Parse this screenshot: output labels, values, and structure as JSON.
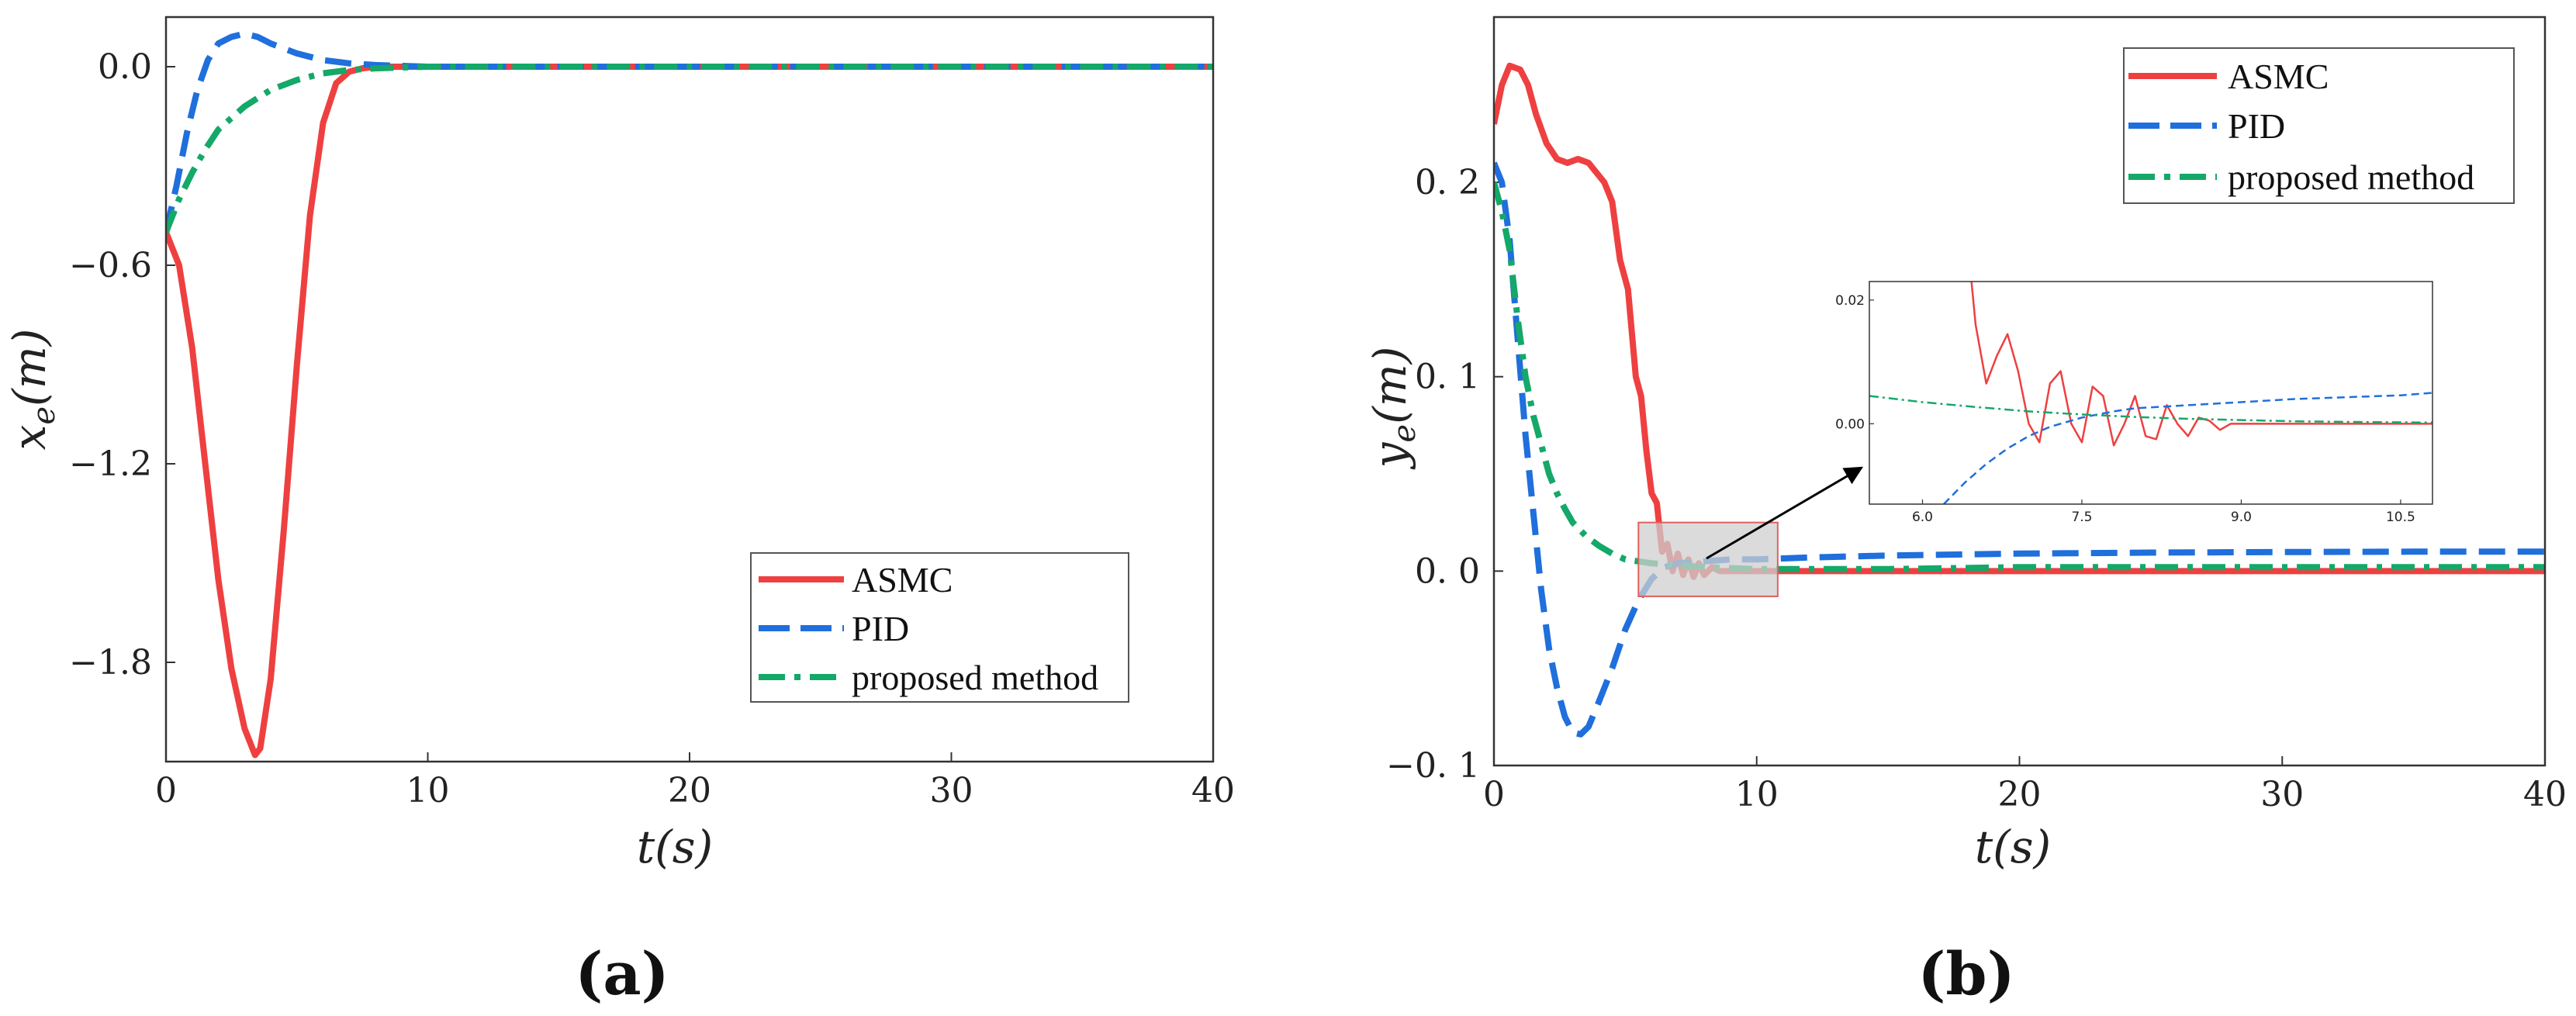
{
  "colors": {
    "asmc": "#ee4040",
    "pid": "#1f6fdc",
    "proposed": "#14a869",
    "frame": "#333333",
    "zoom_box": "#d0d0d0"
  },
  "chart_data": [
    {
      "id": "a",
      "type": "line",
      "caption": "(a)",
      "xlabel": "t(s)",
      "ylabel": "x_e(m)",
      "ylabel_main": "x",
      "ylabel_sub": "e",
      "ylabel_unit": "(m)",
      "xlim": [
        0,
        40
      ],
      "ylim": [
        -2.1,
        0.15
      ],
      "xticks": [
        0,
        10,
        20,
        30,
        40
      ],
      "yticks": [
        0.0,
        -0.6,
        -1.2,
        -1.8
      ],
      "ytick_labels": [
        "0.0",
        "−0.6",
        "−1.2",
        "−1.8"
      ],
      "legend_position": "bottom-right",
      "legend": [
        "ASMC",
        "PID",
        "proposed method"
      ],
      "series": [
        {
          "name": "ASMC",
          "style": "solid",
          "x": [
            0,
            0.5,
            1,
            1.5,
            2,
            2.5,
            3,
            3.4,
            3.6,
            4,
            4.5,
            5,
            5.5,
            6,
            6.5,
            7,
            7.5,
            8,
            10,
            15,
            20,
            25,
            30,
            35,
            40
          ],
          "y": [
            -0.5,
            -0.6,
            -0.85,
            -1.2,
            -1.55,
            -1.82,
            -2.0,
            -2.08,
            -2.06,
            -1.85,
            -1.4,
            -0.9,
            -0.45,
            -0.17,
            -0.05,
            -0.015,
            -0.005,
            0.0,
            0.0,
            0.0,
            0.0,
            0.0,
            0.0,
            0.0,
            0.0
          ]
        },
        {
          "name": "PID",
          "style": "dashed",
          "x": [
            0,
            0.4,
            0.8,
            1.2,
            1.6,
            2,
            2.5,
            3,
            3.5,
            4,
            5,
            6,
            7,
            8,
            10,
            15,
            20,
            25,
            30,
            35,
            40
          ],
          "y": [
            -0.5,
            -0.36,
            -0.2,
            -0.07,
            0.02,
            0.07,
            0.09,
            0.1,
            0.09,
            0.07,
            0.04,
            0.02,
            0.01,
            0.005,
            0.0,
            0.0,
            0.0,
            0.0,
            0.0,
            0.0,
            0.0
          ]
        },
        {
          "name": "proposed method",
          "style": "dashdot",
          "x": [
            0,
            0.5,
            1,
            1.5,
            2,
            3,
            4,
            5,
            6,
            7,
            8,
            10,
            15,
            20,
            25,
            30,
            35,
            40
          ],
          "y": [
            -0.5,
            -0.4,
            -0.32,
            -0.25,
            -0.19,
            -0.12,
            -0.07,
            -0.04,
            -0.02,
            -0.01,
            -0.005,
            0.0,
            0.0,
            0.0,
            0.0,
            0.0,
            0.0,
            0.0
          ]
        }
      ]
    },
    {
      "id": "b",
      "type": "line",
      "caption": "(b)",
      "xlabel": "t(s)",
      "ylabel": "y_e(m)",
      "ylabel_main": "y",
      "ylabel_sub": "e",
      "ylabel_unit": "(m)",
      "xlim": [
        0,
        40
      ],
      "ylim": [
        -0.1,
        0.285
      ],
      "xticks": [
        0,
        10,
        20,
        30,
        40
      ],
      "yticks": [
        0.2,
        0.1,
        0.0,
        -0.1
      ],
      "ytick_labels": [
        "0. 2",
        "0. 1",
        "0. 0",
        "−0. 1"
      ],
      "legend_position": "top-right",
      "legend": [
        "ASMC",
        "PID",
        "proposed method"
      ],
      "zoom_region": {
        "xlim": [
          5.5,
          10.8
        ],
        "ylim": [
          -0.013,
          0.025
        ]
      },
      "series": [
        {
          "name": "ASMC",
          "style": "solid",
          "x": [
            0,
            0.3,
            0.6,
            1,
            1.3,
            1.6,
            2,
            2.4,
            2.8,
            3.2,
            3.6,
            3.9,
            4.2,
            4.5,
            4.8,
            5.1,
            5.4,
            5.6,
            5.8,
            6,
            6.2,
            6.4,
            6.6,
            6.8,
            7,
            7.2,
            7.4,
            7.6,
            7.8,
            8,
            8.3,
            8.6,
            9,
            10,
            15,
            20,
            25,
            30,
            35,
            40
          ],
          "y": [
            0.23,
            0.25,
            0.26,
            0.258,
            0.25,
            0.235,
            0.22,
            0.212,
            0.21,
            0.212,
            0.21,
            0.205,
            0.2,
            0.19,
            0.16,
            0.145,
            0.1,
            0.09,
            0.062,
            0.04,
            0.035,
            0.01,
            0.014,
            0.0,
            0.009,
            -0.002,
            0.006,
            -0.003,
            0.004,
            -0.002,
            0.002,
            0.0,
            0.0,
            0.0,
            0.0,
            0.0,
            0.0,
            0.0,
            0.0,
            0.0
          ]
        },
        {
          "name": "PID",
          "style": "dashed",
          "x": [
            0,
            0.3,
            0.6,
            0.9,
            1.2,
            1.5,
            1.8,
            2.1,
            2.4,
            2.7,
            3,
            3.3,
            3.6,
            4,
            4.5,
            5,
            5.5,
            6,
            6.5,
            7,
            8,
            9,
            10,
            12,
            15,
            20,
            25,
            30,
            35,
            40
          ],
          "y": [
            0.21,
            0.2,
            0.17,
            0.12,
            0.07,
            0.03,
            -0.01,
            -0.04,
            -0.06,
            -0.075,
            -0.083,
            -0.084,
            -0.08,
            -0.067,
            -0.05,
            -0.03,
            -0.015,
            -0.004,
            0.002,
            0.004,
            0.005,
            0.006,
            0.006,
            0.007,
            0.008,
            0.009,
            0.0095,
            0.0098,
            0.01,
            0.01
          ]
        },
        {
          "name": "proposed method",
          "style": "dashdot",
          "x": [
            0,
            0.3,
            0.6,
            0.9,
            1.2,
            1.5,
            1.8,
            2.1,
            2.4,
            2.7,
            3,
            3.5,
            4,
            4.5,
            5,
            5.5,
            6,
            7,
            8,
            10,
            15,
            20,
            25,
            30,
            35,
            40
          ],
          "y": [
            0.2,
            0.185,
            0.165,
            0.13,
            0.1,
            0.08,
            0.065,
            0.05,
            0.04,
            0.032,
            0.025,
            0.018,
            0.013,
            0.009,
            0.006,
            0.005,
            0.004,
            0.003,
            0.002,
            0.001,
            0.001,
            0.002,
            0.002,
            0.002,
            0.002,
            0.002
          ]
        }
      ],
      "inset": {
        "xlim": [
          5.5,
          10.8
        ],
        "ylim": [
          -0.013,
          0.023
        ],
        "xticks": [
          6.0,
          7.5,
          9.0,
          10.5
        ],
        "xtick_labels": [
          "6.0",
          "7.5",
          "9.0",
          "10.5"
        ],
        "yticks": [
          0.02,
          0.0
        ],
        "ytick_labels": [
          "0.02",
          "0.00"
        ],
        "series": [
          {
            "name": "ASMC",
            "x": [
              6.45,
              6.5,
              6.6,
              6.7,
              6.8,
              6.9,
              7.0,
              7.1,
              7.2,
              7.3,
              7.4,
              7.5,
              7.6,
              7.7,
              7.8,
              7.9,
              8.0,
              8.1,
              8.2,
              8.3,
              8.4,
              8.5,
              8.6,
              8.7,
              8.8,
              8.9,
              9.0,
              9.5,
              10.0,
              10.8
            ],
            "y": [
              0.025,
              0.016,
              0.0065,
              0.011,
              0.0145,
              0.0085,
              0.0,
              -0.003,
              0.0065,
              0.0085,
              0.0,
              -0.003,
              0.006,
              0.0045,
              -0.0035,
              0.0,
              0.0045,
              -0.002,
              -0.0025,
              0.003,
              0.0,
              -0.002,
              0.001,
              0.0005,
              -0.001,
              0.0,
              0.0,
              0.0,
              0.0,
              0.0
            ]
          },
          {
            "name": "PID",
            "x": [
              6.2,
              6.4,
              6.6,
              6.8,
              7.0,
              7.2,
              7.5,
              7.8,
              8.0,
              8.5,
              9.0,
              9.5,
              10.0,
              10.5,
              10.8
            ],
            "y": [
              -0.013,
              -0.0095,
              -0.0065,
              -0.004,
              -0.002,
              -0.0005,
              0.001,
              0.002,
              0.0025,
              0.003,
              0.0035,
              0.004,
              0.0043,
              0.0046,
              0.005
            ]
          },
          {
            "name": "proposed method",
            "x": [
              5.5,
              6.0,
              6.5,
              7.0,
              7.5,
              8.0,
              8.5,
              9.0,
              9.5,
              10.0,
              10.8
            ],
            "y": [
              0.0045,
              0.0035,
              0.0027,
              0.002,
              0.0015,
              0.0011,
              0.0008,
              0.0006,
              0.0004,
              0.0003,
              0.0002
            ]
          }
        ]
      }
    }
  ]
}
